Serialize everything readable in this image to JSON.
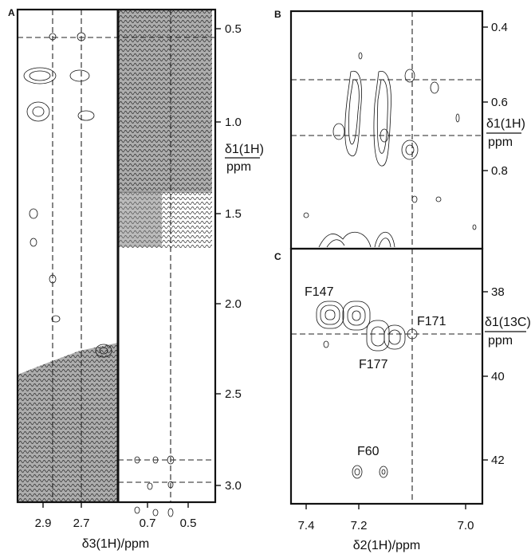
{
  "panel_a": {
    "letter": "A",
    "x_ticks_left": [
      "2.9",
      "2.7"
    ],
    "x_ticks_right": [
      "0.7",
      "0.5"
    ],
    "y_ticks": [
      "0.5",
      "1.0",
      "1.5",
      "2.0",
      "2.5",
      "3.0"
    ],
    "x_title": "δ3(1H)/ppm",
    "y_title_top": "δ1(1H)",
    "y_title_bottom": "ppm"
  },
  "panel_b": {
    "letter": "B",
    "y_ticks": [
      "0.4",
      "0.6",
      "0.8"
    ],
    "y_title_top": "δ1(1H)",
    "y_title_bottom": "ppm"
  },
  "panel_c": {
    "letter": "C",
    "x_ticks": [
      "7.4",
      "7.2",
      "7.0"
    ],
    "y_ticks": [
      "38",
      "40",
      "42"
    ],
    "x_title": "δ2(1H)/ppm",
    "y_title_top": "δ1(13C)",
    "y_title_bottom": "ppm",
    "peak_labels": [
      "F147",
      "F171",
      "F177",
      "F60"
    ]
  },
  "colors": {
    "ink": "#111111",
    "background": "#ffffff"
  }
}
